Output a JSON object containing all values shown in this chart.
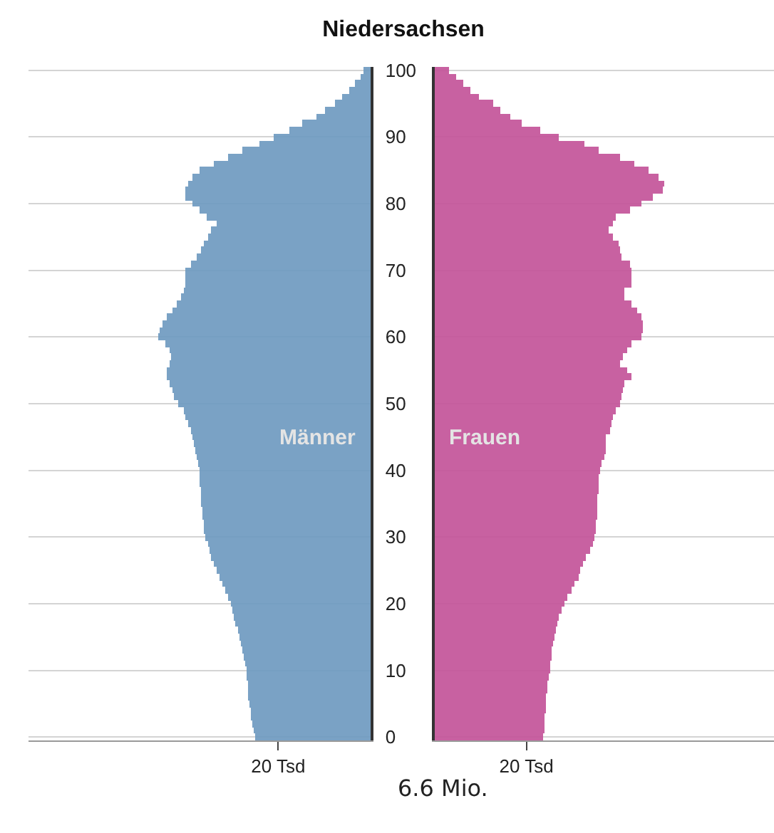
{
  "chart_data": [
    {
      "type": "bar",
      "orientation": "horizontal",
      "title": "Niedersachsen",
      "categories": [
        "100",
        null,
        null,
        null,
        null,
        null,
        null,
        null,
        null,
        null,
        "90",
        null,
        null,
        null,
        null,
        null,
        null,
        null,
        null,
        null,
        "80",
        null,
        null,
        null,
        null,
        null,
        null,
        null,
        null,
        null,
        "70",
        null,
        null,
        null,
        null,
        null,
        null,
        null,
        null,
        null,
        "60",
        null,
        null,
        null,
        null,
        null,
        null,
        null,
        null,
        null,
        "50",
        null,
        null,
        null,
        null,
        null,
        null,
        null,
        null,
        null,
        "40",
        null,
        null,
        null,
        null,
        null,
        null,
        null,
        null,
        null,
        "30",
        null,
        null,
        null,
        null,
        null,
        null,
        null,
        null,
        null,
        "20",
        null,
        null,
        null,
        null,
        null,
        null,
        null,
        null,
        null,
        "10",
        null,
        null,
        null,
        null,
        null,
        null,
        null,
        null,
        null,
        "0"
      ],
      "series": [
        {
          "name": "Männer",
          "color": "#6f9bc1",
          "values": [
            1.5,
            2.2,
            3.4,
            4.6,
            6.2,
            7.7,
            9.8,
            11.8,
            14.9,
            17.5,
            21.0,
            24.0,
            27.9,
            30.8,
            34.0,
            37.0,
            38.5,
            39.5,
            40.0,
            40.0,
            38.5,
            37.0,
            35.4,
            33.3,
            34.5,
            35.2,
            36.0,
            36.8,
            37.5,
            38.7,
            40.0,
            40.0,
            40.0,
            40.5,
            41.0,
            42.0,
            43.0,
            44.0,
            45.0,
            45.5,
            46.0,
            44.5,
            43.4,
            43.2,
            43.5,
            44.0,
            44.0,
            43.5,
            43.0,
            42.5,
            41.5,
            40.5,
            40.0,
            39.5,
            39.0,
            38.5,
            38.2,
            37.9,
            37.6,
            37.3,
            37.1,
            37.0,
            36.9,
            36.8,
            36.7,
            36.6,
            36.5,
            36.4,
            36.2,
            36.0,
            35.7,
            35.3,
            34.9,
            34.4,
            33.9,
            33.3,
            32.8,
            32.2,
            31.5,
            30.8,
            30.2,
            29.9,
            29.6,
            29.2,
            28.8,
            28.4,
            28.1,
            27.8,
            27.5,
            27.2,
            26.9,
            26.8,
            26.6,
            26.5,
            26.4,
            26.2,
            26.0,
            25.8,
            25.5,
            25.3,
            25.0
          ]
        }
      ],
      "xlim": [
        74,
        0
      ],
      "xticks": [
        {
          "value": 20,
          "label": "20 Tsd"
        }
      ],
      "grid": "y",
      "tick_labels": "xy"
    },
    {
      "type": "bar",
      "orientation": "horizontal",
      "categories": [
        "100",
        null,
        null,
        null,
        null,
        null,
        null,
        null,
        null,
        null,
        "90",
        null,
        null,
        null,
        null,
        null,
        null,
        null,
        null,
        null,
        "80",
        null,
        null,
        null,
        null,
        null,
        null,
        null,
        null,
        null,
        "70",
        null,
        null,
        null,
        null,
        null,
        null,
        null,
        null,
        null,
        "60",
        null,
        null,
        null,
        null,
        null,
        null,
        null,
        null,
        null,
        "50",
        null,
        null,
        null,
        null,
        null,
        null,
        null,
        null,
        null,
        "40",
        null,
        null,
        null,
        null,
        null,
        null,
        null,
        null,
        null,
        "30",
        null,
        null,
        null,
        null,
        null,
        null,
        null,
        null,
        null,
        "20",
        null,
        null,
        null,
        null,
        null,
        null,
        null,
        null,
        null,
        "10",
        null,
        null,
        null,
        null,
        null,
        null,
        null,
        null,
        null,
        "0"
      ],
      "series": [
        {
          "name": "Frauen",
          "color": "#c4549a",
          "values": [
            3.0,
            4.6,
            6.2,
            7.9,
            9.7,
            12.8,
            14.4,
            16.4,
            19.0,
            23.0,
            27.2,
            32.8,
            35.9,
            40.5,
            43.6,
            46.7,
            48.7,
            50.2,
            49.6,
            47.7,
            45.0,
            42.6,
            39.5,
            38.8,
            38.0,
            39.0,
            40.0,
            40.3,
            40.7,
            42.6,
            43.0,
            43.0,
            43.0,
            41.5,
            41.5,
            43.0,
            44.0,
            45.0,
            45.4,
            45.4,
            45.0,
            43.0,
            42.0,
            41.1,
            40.5,
            42.0,
            43.0,
            41.5,
            41.0,
            40.7,
            40.5,
            39.5,
            38.8,
            38.5,
            38.2,
            37.4,
            37.2,
            37.2,
            36.9,
            36.4,
            36.0,
            35.8,
            35.7,
            35.6,
            35.5,
            35.4,
            35.3,
            35.3,
            35.2,
            35.0,
            34.9,
            34.4,
            33.8,
            33.1,
            32.3,
            31.8,
            31.3,
            30.5,
            29.7,
            29.0,
            28.2,
            27.7,
            27.2,
            26.8,
            26.4,
            26.1,
            25.9,
            25.6,
            25.4,
            25.2,
            25.1,
            24.9,
            24.7,
            24.5,
            24.4,
            24.3,
            24.1,
            24.0,
            23.9,
            23.8,
            23.7
          ]
        }
      ],
      "xlim": [
        0,
        74
      ],
      "xticks": [
        {
          "value": 20,
          "label": "20 Tsd"
        }
      ],
      "grid": "y",
      "tick_labels": "x",
      "annotations": [
        "6.6 Mio."
      ]
    }
  ]
}
